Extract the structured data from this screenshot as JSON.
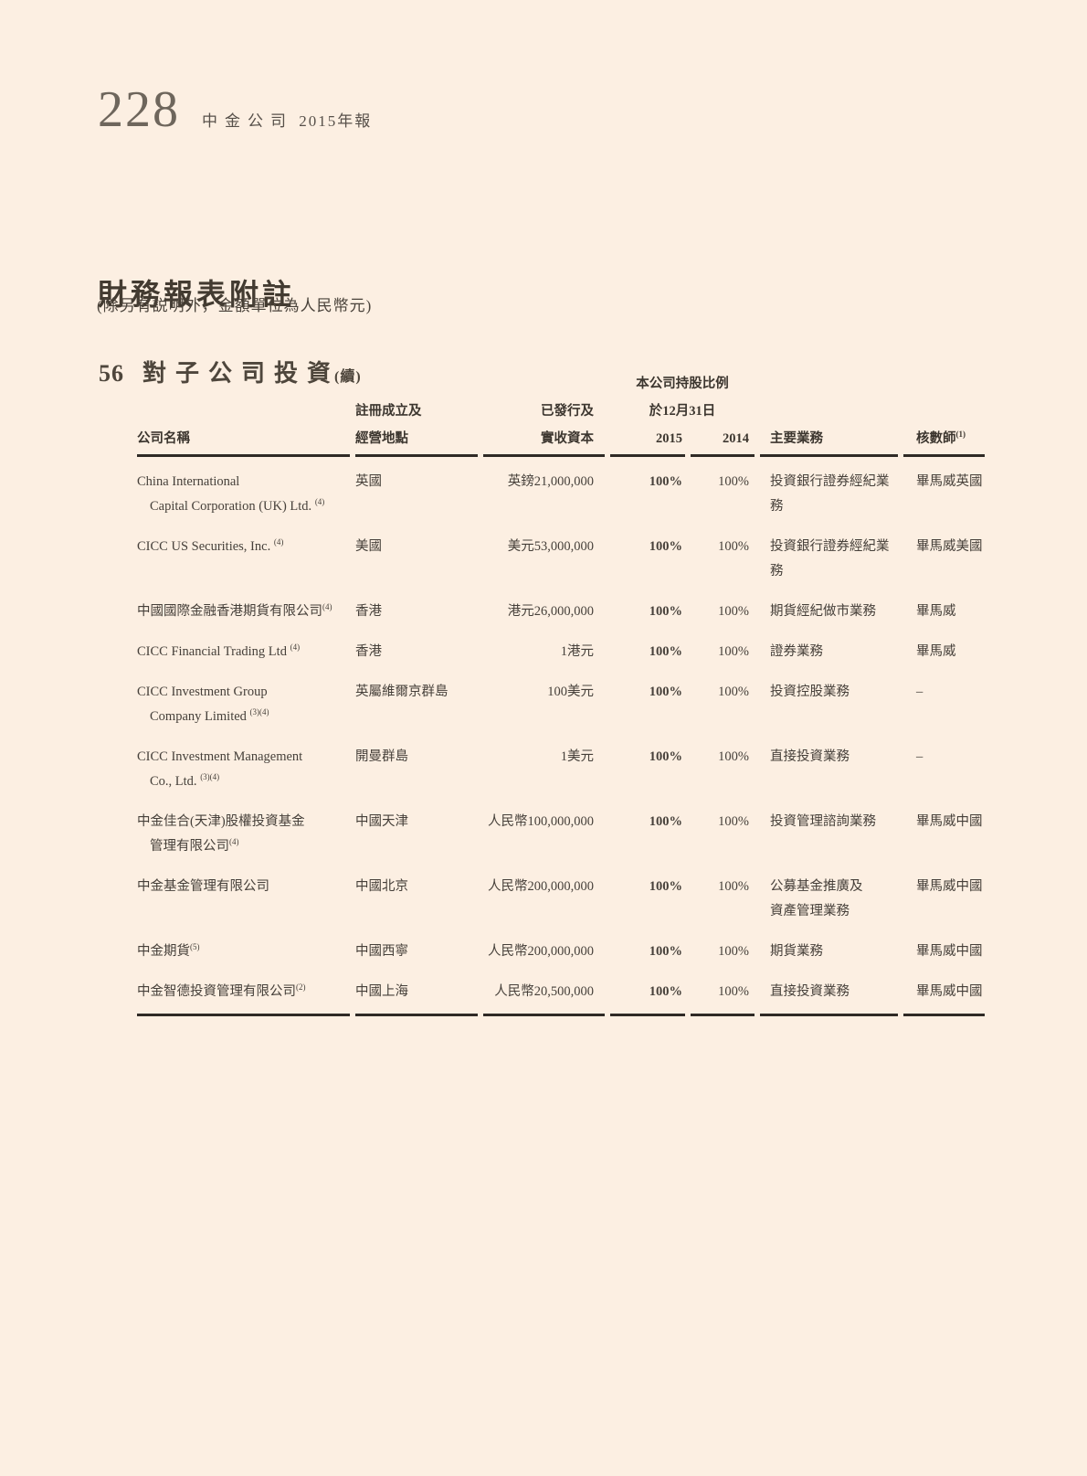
{
  "colors": {
    "background": "#fcefe2",
    "text": "#46403a",
    "rule": "#2f2a25",
    "page_number": "#6e665c"
  },
  "page": {
    "number": "228",
    "brand": "中金公司",
    "brand_year": "2015年報",
    "title": "財務報表附註",
    "subtitle": "(除另有説明外，金額單位為人民幣元)",
    "section_number": "56",
    "section_title": "對子公司投資",
    "section_suffix": "(續)"
  },
  "table": {
    "headers": {
      "company": "公司名稱",
      "location_line1": "註冊成立及",
      "location_line2": "經營地點",
      "capital_line1": "已發行及",
      "capital_line2": "實收資本",
      "holding_line1": "本公司持股比例",
      "holding_line2": "於12月31日",
      "y2015": "2015",
      "y2014": "2014",
      "business": "主要業務",
      "auditor": "核數師",
      "auditor_sup": "(1)"
    },
    "rows": [
      {
        "name_lines": [
          "China International",
          "Capital Corporation (UK) Ltd."
        ],
        "sup": "(4)",
        "sup_space": true,
        "location": "英國",
        "capital": "英鎊21,000,000",
        "y2015": "100%",
        "y2014": "100%",
        "business_lines": [
          "投資銀行證券經紀業務"
        ],
        "auditor": "畢馬威英國"
      },
      {
        "name_lines": [
          "CICC US Securities, Inc."
        ],
        "sup": "(4)",
        "sup_space": true,
        "location": "美國",
        "capital": "美元53,000,000",
        "y2015": "100%",
        "y2014": "100%",
        "business_lines": [
          "投資銀行證券經紀業務"
        ],
        "auditor": "畢馬威美國"
      },
      {
        "name_lines": [
          "中國國際金融香港期貨有限公司"
        ],
        "sup": "(4)",
        "sup_space": false,
        "location": "香港",
        "capital": "港元26,000,000",
        "y2015": "100%",
        "y2014": "100%",
        "business_lines": [
          "期貨經紀做市業務"
        ],
        "auditor": "畢馬威"
      },
      {
        "name_lines": [
          "CICC Financial Trading Ltd"
        ],
        "sup": "(4)",
        "sup_space": true,
        "location": "香港",
        "capital": "1港元",
        "y2015": "100%",
        "y2014": "100%",
        "business_lines": [
          "證券業務"
        ],
        "auditor": "畢馬威"
      },
      {
        "name_lines": [
          "CICC Investment Group",
          "Company Limited"
        ],
        "sup": "(3)(4)",
        "sup_space": true,
        "location": "英屬維爾京群島",
        "capital": "100美元",
        "y2015": "100%",
        "y2014": "100%",
        "business_lines": [
          "投資控股業務"
        ],
        "auditor": "–"
      },
      {
        "name_lines": [
          "CICC Investment Management",
          "Co., Ltd."
        ],
        "sup": "(3)(4)",
        "sup_space": true,
        "location": "開曼群島",
        "capital": "1美元",
        "y2015": "100%",
        "y2014": "100%",
        "business_lines": [
          "直接投資業務"
        ],
        "auditor": "–"
      },
      {
        "name_lines": [
          "中金佳合(天津)股權投資基金",
          "管理有限公司"
        ],
        "sup": "(4)",
        "sup_space": false,
        "location": "中國天津",
        "capital": "人民幣100,000,000",
        "y2015": "100%",
        "y2014": "100%",
        "business_lines": [
          "投資管理諮詢業務"
        ],
        "auditor": "畢馬威中國"
      },
      {
        "name_lines": [
          "中金基金管理有限公司"
        ],
        "sup": "",
        "sup_space": false,
        "location": "中國北京",
        "capital": "人民幣200,000,000",
        "y2015": "100%",
        "y2014": "100%",
        "business_lines": [
          "公募基金推廣及",
          "資產管理業務"
        ],
        "auditor": "畢馬威中國"
      },
      {
        "name_lines": [
          "中金期貨"
        ],
        "sup": "(5)",
        "sup_space": false,
        "location": "中國西寧",
        "capital": "人民幣200,000,000",
        "y2015": "100%",
        "y2014": "100%",
        "business_lines": [
          "期貨業務"
        ],
        "auditor": "畢馬威中國"
      },
      {
        "name_lines": [
          "中金智德投資管理有限公司"
        ],
        "sup": "(2)",
        "sup_space": false,
        "location": "中國上海",
        "capital": "人民幣20,500,000",
        "y2015": "100%",
        "y2014": "100%",
        "business_lines": [
          "直接投資業務"
        ],
        "auditor": "畢馬威中國"
      }
    ]
  }
}
